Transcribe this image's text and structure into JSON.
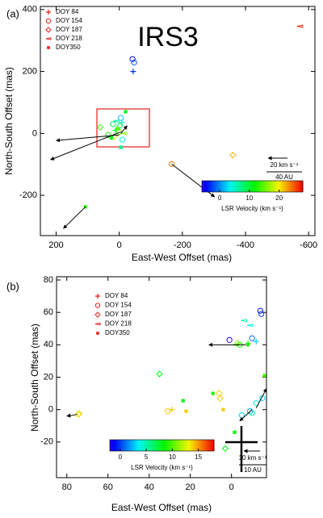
{
  "chart_data": [
    {
      "type": "scatter",
      "panel_label": "(a)",
      "title": "IRS3",
      "x_label": "East-West Offset (mas)",
      "y_label": "North-South Offset (mas)",
      "xlim": [
        250,
        -620
      ],
      "ylim": [
        -330,
        410
      ],
      "xticks": [
        200,
        0,
        -200,
        -400,
        -600
      ],
      "yticks": [
        -200,
        0,
        200,
        400
      ],
      "series": [
        {
          "name": "DOY 84",
          "marker": "plus",
          "color": "#e0201b",
          "x": [
            -44,
            -8,
            12
          ],
          "y": [
            200,
            35,
            10
          ],
          "velocity": [
            -3,
            5,
            10
          ]
        },
        {
          "name": "DOY 154",
          "marker": "circle",
          "color": "#e0201b",
          "x": [
            -42,
            -47,
            -166,
            -5,
            20,
            35,
            -10,
            0
          ],
          "y": [
            240,
            229,
            -99,
            50,
            30,
            -5,
            -20,
            5
          ],
          "velocity": [
            -4,
            -2,
            24,
            2,
            8,
            12,
            4,
            14
          ]
        },
        {
          "name": "DOY 187",
          "marker": "diamond",
          "color": "#e0201b",
          "x": [
            -360,
            60,
            15,
            -2
          ],
          "y": [
            -70,
            20,
            -10,
            25
          ],
          "velocity": [
            22,
            14,
            18,
            9
          ]
        },
        {
          "name": "DOY 218",
          "marker": "triangle",
          "color": "#e0201b",
          "x": [
            -572,
            10,
            -15
          ],
          "y": [
            346,
            40,
            0
          ],
          "velocity": [
            27,
            6,
            16
          ]
        },
        {
          "name": "DOY350",
          "marker": "square",
          "color": "#e0201b",
          "x": [
            107,
            -20,
            5,
            25,
            -5
          ],
          "y": [
            -237,
            70,
            15,
            -15,
            -45
          ],
          "velocity": [
            13,
            11,
            15,
            12,
            7
          ]
        }
      ],
      "arrows": [
        {
          "x": 0,
          "y": -5,
          "dx": 200,
          "dy": -18
        },
        {
          "x": -5,
          "y": 5,
          "dx": 223,
          "dy": -90
        },
        {
          "x": -166,
          "y": -99,
          "dx": -136,
          "dy": -106
        },
        {
          "x": 107,
          "y": -237,
          "dx": 70,
          "dy": -70
        },
        {
          "x": -5,
          "y": 0,
          "dx": -20,
          "dy": 25
        }
      ],
      "colorbar": {
        "label": "LSR Velocity (km s⁻¹)",
        "lim": [
          -6,
          28
        ],
        "ticks": [
          0,
          10,
          20
        ]
      },
      "scale": {
        "velocity": "20 km s⁻¹",
        "length": "40 AU"
      }
    },
    {
      "type": "scatter",
      "panel_label": "(b)",
      "x_label": "East-West Offset (mas)",
      "y_label": "North-South Offset (mas)",
      "xlim": [
        85,
        -17
      ],
      "ylim": [
        -42,
        82
      ],
      "xticks": [
        80,
        60,
        40,
        20,
        0
      ],
      "yticks": [
        -20,
        0,
        20,
        40,
        60,
        80
      ],
      "series": [
        {
          "name": "DOY 84",
          "marker": "plus",
          "color": "#e0201b",
          "x": [
            29,
            -12,
            -8
          ],
          "y": [
            0,
            42,
            41
          ],
          "velocity": [
            14,
            3,
            9
          ]
        },
        {
          "name": "DOY 154",
          "marker": "circle",
          "color": "#e0201b",
          "x": [
            -14,
            -14.5,
            -10,
            1,
            31,
            74.5,
            -15,
            -12,
            -9,
            -5,
            -10,
            6,
            -4
          ],
          "y": [
            61,
            59,
            44,
            43,
            -1,
            -3,
            7,
            4,
            -1,
            -3.5,
            -2,
            10,
            40
          ],
          "velocity": [
            -1,
            0,
            1,
            -2,
            14,
            13,
            3,
            4,
            2,
            3,
            5,
            14,
            9
          ]
        },
        {
          "name": "DOY 187",
          "marker": "diamond",
          "color": "#e0201b",
          "x": [
            35,
            74,
            5.5,
            3,
            -3
          ],
          "y": [
            22,
            -2.5,
            7,
            -24,
            41
          ],
          "velocity": [
            8,
            14,
            14,
            8,
            11
          ]
        },
        {
          "name": "DOY 218",
          "marker": "triangle",
          "color": "#e0201b",
          "x": [
            -9,
            -6,
            -2
          ],
          "y": [
            52,
            55,
            40
          ],
          "velocity": [
            4,
            5,
            10
          ]
        },
        {
          "name": "DOY350",
          "marker": "square",
          "color": "#e0201b",
          "x": [
            23.5,
            22,
            9,
            -1.5,
            -16,
            4,
            -8
          ],
          "y": [
            5.5,
            -1,
            10,
            -14,
            21,
            0,
            40
          ],
          "velocity": [
            8,
            14,
            9,
            8,
            10,
            14,
            9
          ]
        }
      ],
      "arrows": [
        {
          "x": -7,
          "y": 40,
          "dx": 18,
          "dy": 0
        },
        {
          "x": 75,
          "y": -3,
          "dx": 5,
          "dy": -1
        },
        {
          "x": -12,
          "y": 1,
          "dx": -5,
          "dy": 12
        },
        {
          "x": -10,
          "y": 0,
          "dx": 6,
          "dy": -7
        }
      ],
      "colorbar": {
        "label": "LSR Velocity (km s⁻¹)",
        "lim": [
          -2,
          18
        ],
        "ticks": [
          0,
          5,
          10,
          15
        ]
      },
      "scale": {
        "velocity": "10 km s⁻¹",
        "length": "10 AU"
      }
    }
  ]
}
